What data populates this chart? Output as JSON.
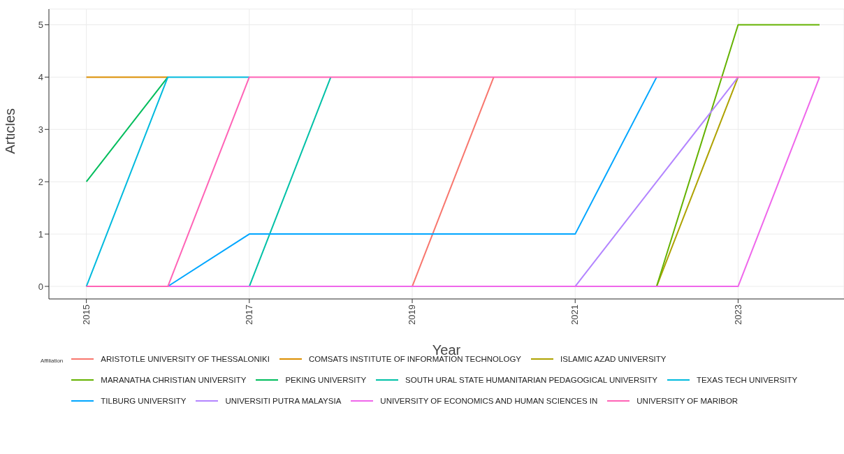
{
  "chart_data": {
    "type": "line",
    "xlabel": "Year",
    "ylabel": "Articles",
    "legend_title": "Affiliation",
    "x": [
      2015,
      2016,
      2017,
      2018,
      2019,
      2020,
      2021,
      2022,
      2023,
      2024
    ],
    "xlim": [
      2014.54,
      2024.3
    ],
    "xticks": [
      2015,
      2017,
      2019,
      2021,
      2023
    ],
    "ylim": [
      -0.24,
      5.3
    ],
    "yticks": [
      0,
      1,
      2,
      3,
      4,
      5
    ],
    "grid": true,
    "legend": "bottom",
    "marker": "none",
    "line_style": "solid",
    "series": [
      {
        "name": "ARISTOTLE UNIVERSITY OF THESSALONIKI",
        "color": "#f8766d",
        "values": [
          null,
          null,
          null,
          null,
          0,
          4,
          null,
          null,
          null,
          null
        ]
      },
      {
        "name": "COMSATS INSTITUTE OF INFORMATION TECHNOLOGY",
        "color": "#db8e00",
        "values": [
          4,
          4,
          null,
          null,
          null,
          null,
          null,
          null,
          null,
          null
        ]
      },
      {
        "name": "ISLAMIC AZAD UNIVERSITY",
        "color": "#aea200",
        "values": [
          null,
          null,
          null,
          null,
          null,
          null,
          null,
          0,
          4,
          null
        ]
      },
      {
        "name": "MARANATHA CHRISTIAN UNIVERSITY",
        "color": "#64b200",
        "values": [
          null,
          null,
          null,
          null,
          null,
          null,
          null,
          0,
          5,
          5
        ]
      },
      {
        "name": "PEKING UNIVERSITY",
        "color": "#00bd5c",
        "values": [
          2,
          4,
          null,
          null,
          null,
          null,
          null,
          null,
          null,
          null
        ]
      },
      {
        "name": "SOUTH URAL STATE HUMANITARIAN PEDAGOGICAL UNIVERSITY",
        "color": "#00c1a7",
        "values": [
          null,
          null,
          0,
          4,
          null,
          null,
          null,
          null,
          null,
          null
        ]
      },
      {
        "name": "TEXAS TECH UNIVERSITY",
        "color": "#00bade",
        "values": [
          0,
          4,
          4,
          null,
          null,
          null,
          null,
          null,
          null,
          null
        ]
      },
      {
        "name": "TILBURG UNIVERSITY",
        "color": "#00a6ff",
        "values": [
          null,
          0,
          1,
          1,
          1,
          1,
          1,
          4,
          null,
          null
        ]
      },
      {
        "name": "UNIVERSITI PUTRA MALAYSIA",
        "color": "#b385ff",
        "values": [
          null,
          null,
          null,
          null,
          null,
          null,
          0,
          2,
          4,
          null
        ]
      },
      {
        "name": "UNIVERSITY OF ECONOMICS AND HUMAN SCIENCES IN",
        "color": "#ef67eb",
        "values": [
          null,
          0,
          0,
          0,
          0,
          0,
          0,
          0,
          0,
          4
        ]
      },
      {
        "name": "UNIVERSITY OF MARIBOR",
        "color": "#ff63b6",
        "values": [
          0,
          0,
          4,
          4,
          4,
          4,
          4,
          4,
          4,
          4
        ]
      }
    ]
  }
}
